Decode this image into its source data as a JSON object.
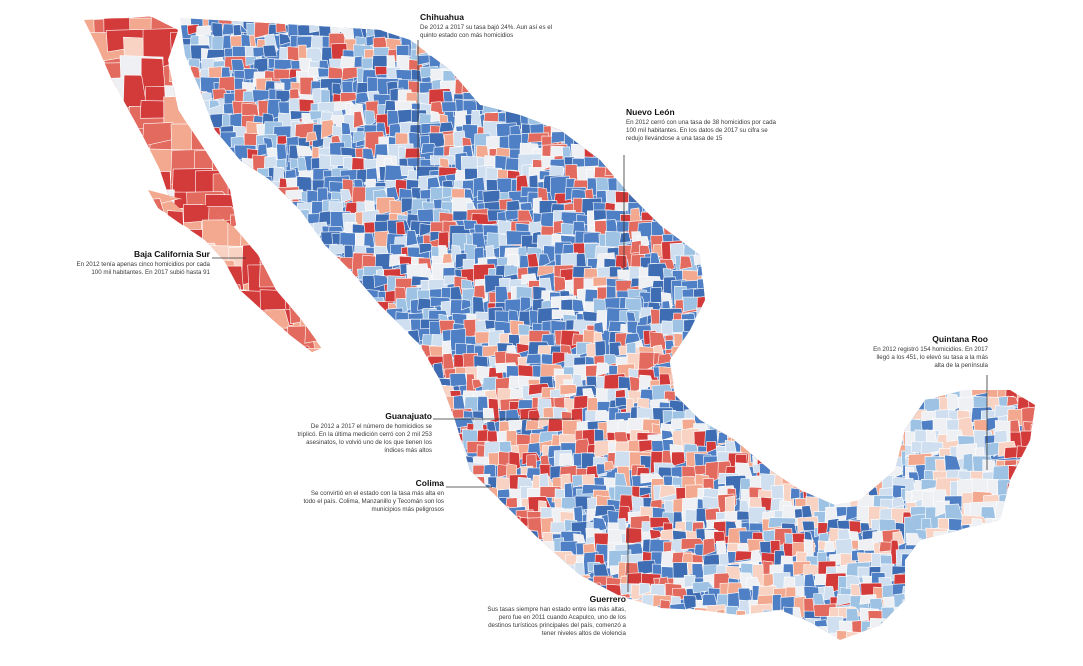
{
  "colors": {
    "dark_red": "#d33a3a",
    "red": "#e36a5e",
    "light_red": "#f2a98f",
    "pale_red": "#f8d3c4",
    "neutral": "#eef0f3",
    "pale_blue": "#cfdff0",
    "light_blue": "#9ec2e3",
    "blue": "#4f7fc4",
    "dark_blue": "#3f6db3",
    "border": "#ffffff"
  },
  "callouts": [
    {
      "id": "chihuahua",
      "title": "Chihuahua",
      "text": "De 2012 a 2017 su tasa bajó 24%. Aun así es el quinto estado con más homicidios"
    },
    {
      "id": "nuevo-leon",
      "title": "Nuevo León",
      "text": "En 2012 cerró con una tasa de 38 homicidios por cada 100 mil habitantes. En los datos de 2017 su cifra se redujo llevándose a una tasa de 15"
    },
    {
      "id": "baja-california-sur",
      "title": "Baja California Sur",
      "text": "En 2012 tenía apenas cinco homicidios por cada 100 mil habitantes. En 2017 subió hasta 91"
    },
    {
      "id": "quintana-roo",
      "title": "Quintana Roo",
      "text": "En 2012 registró 154 homicidios. En 2017 llegó a los 451, lo elevó su tasa a la más alta de la península"
    },
    {
      "id": "guanajuato",
      "title": "Guanajuato",
      "text": "De 2012 a 2017 el número de homicidios se triplicó. En la última medición cerró con 2 mil 253 asesinatos, lo volvió uno de los que tienen los índices más altos"
    },
    {
      "id": "colima",
      "title": "Colima",
      "text": "Se convirtió en el estado con la tasa más alta en todo el país. Colima, Manzanillo y Tecomán son los municipios más peligrosos"
    },
    {
      "id": "guerrero",
      "title": "Guerrero",
      "text": "Sus tasas siempre han estado entre las más altas, pero fue en 2011 cuando Acapulco, uno de los destinos turísticos principales del país, comenzó a tener niveles altos de violencia"
    }
  ]
}
